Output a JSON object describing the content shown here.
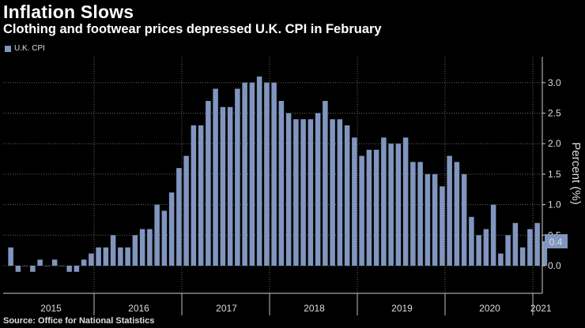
{
  "chart_data": {
    "type": "bar",
    "title": "Inflation Slows",
    "subtitle": "Clothing and footwear prices depressed U.K. CPI in February",
    "source": "Source: Office for National Statistics",
    "legend": [
      "U.K. CPI"
    ],
    "ylabel": "Percent (%)",
    "ylim": [
      -0.4,
      3.4
    ],
    "yticks": [
      "3.0",
      "2.5",
      "2.0",
      "1.5",
      "1.0",
      "0.5",
      "0.0"
    ],
    "ytick_values": [
      3.0,
      2.5,
      2.0,
      1.5,
      1.0,
      0.5,
      0.0
    ],
    "last_value_label": "0.4",
    "year_labels": [
      "2015",
      "2016",
      "2017",
      "2018",
      "2019",
      "2020",
      "2021"
    ],
    "series": [
      {
        "name": "U.K. CPI",
        "color": "#8096bf",
        "start": "2015-01",
        "values": [
          0.3,
          -0.1,
          0.0,
          -0.1,
          0.1,
          0.0,
          0.1,
          0.0,
          -0.1,
          -0.1,
          0.1,
          0.2,
          0.3,
          0.3,
          0.5,
          0.3,
          0.3,
          0.5,
          0.6,
          0.6,
          1.0,
          0.9,
          1.2,
          1.6,
          1.8,
          2.3,
          2.3,
          2.7,
          2.9,
          2.6,
          2.6,
          2.9,
          3.0,
          3.0,
          3.1,
          3.0,
          3.0,
          2.7,
          2.5,
          2.4,
          2.4,
          2.4,
          2.5,
          2.7,
          2.4,
          2.4,
          2.3,
          2.1,
          1.8,
          1.9,
          1.9,
          2.1,
          2.0,
          2.0,
          2.1,
          1.7,
          1.7,
          1.5,
          1.5,
          1.3,
          1.8,
          1.7,
          1.5,
          0.8,
          0.5,
          0.6,
          1.0,
          0.2,
          0.5,
          0.7,
          0.3,
          0.6,
          0.7,
          0.4
        ]
      }
    ]
  }
}
